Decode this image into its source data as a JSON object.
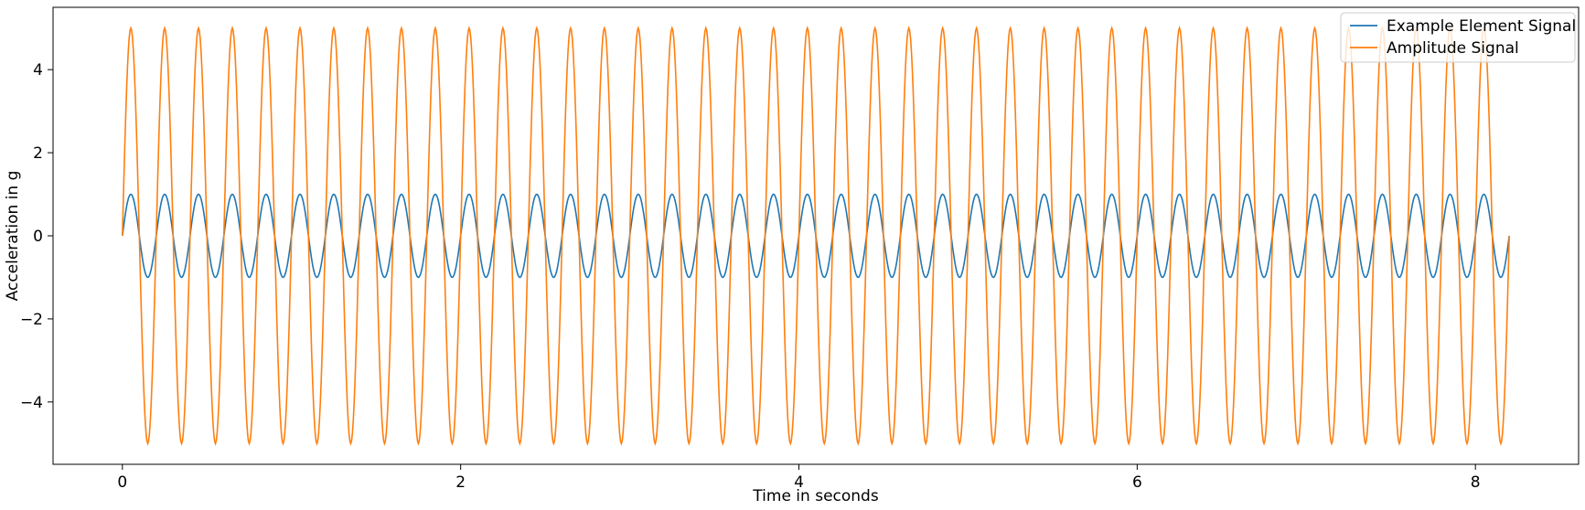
{
  "chart_data": {
    "type": "line",
    "title": "",
    "xlabel": "Time in seconds",
    "ylabel": "Acceleration in g",
    "xlim": [
      -0.41,
      8.61
    ],
    "ylim": [
      -5.5,
      5.5
    ],
    "x_ticks": [
      0,
      2,
      4,
      6,
      8
    ],
    "x_tick_labels": [
      "0",
      "2",
      "4",
      "6",
      "8"
    ],
    "y_ticks": [
      4,
      2,
      0,
      -2,
      -4
    ],
    "y_tick_labels": [
      "4",
      "2",
      "0",
      "−2",
      "−4"
    ],
    "grid": false,
    "legend": {
      "location": "upper-right"
    },
    "x": {
      "start": 0,
      "end": 8.2,
      "points": 1640
    },
    "series": [
      {
        "name": "Example Element Signal",
        "color": "#1f77b4",
        "amplitude": 1,
        "frequency_hz": 5,
        "function": "sin"
      },
      {
        "name": "Amplitude Signal",
        "color": "#ff7f0e",
        "amplitude": 5,
        "frequency_hz": 5,
        "function": "sin"
      }
    ]
  }
}
